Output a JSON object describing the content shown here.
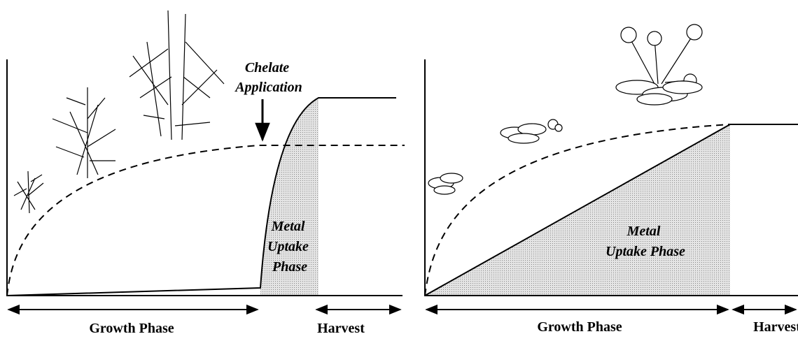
{
  "panels": [
    {
      "annotation": [
        "Chelate",
        "Application"
      ],
      "area_label": [
        "Metal",
        "Uptake",
        "Phase"
      ],
      "growth_label": "Growth Phase",
      "harvest_label": "Harvest"
    },
    {
      "area_label": [
        "Metal",
        "Uptake Phase"
      ],
      "growth_label": "Growth Phase",
      "harvest_label": "Harvest"
    }
  ]
}
